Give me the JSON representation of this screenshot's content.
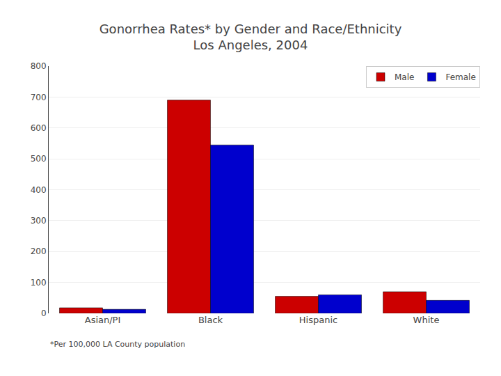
{
  "chart_data": {
    "type": "bar",
    "title": "Gonorrhea Rates* by Gender and Race/Ethnicity\nLos Angeles, 2004",
    "categories": [
      "Asian/PI",
      "Black",
      "Hispanic",
      "White"
    ],
    "series": [
      {
        "name": "Male",
        "color": "#CC0000",
        "values": [
          18,
          690,
          55,
          70
        ]
      },
      {
        "name": "Female",
        "color": "#0000CD",
        "values": [
          13,
          545,
          60,
          42
        ]
      }
    ],
    "ylim": [
      0,
      800
    ],
    "yticks": [
      0,
      100,
      200,
      300,
      400,
      500,
      600,
      700,
      800
    ],
    "grid": true,
    "legend": "upper right",
    "annotations": [
      "*Per 100,000 LA County population"
    ]
  }
}
